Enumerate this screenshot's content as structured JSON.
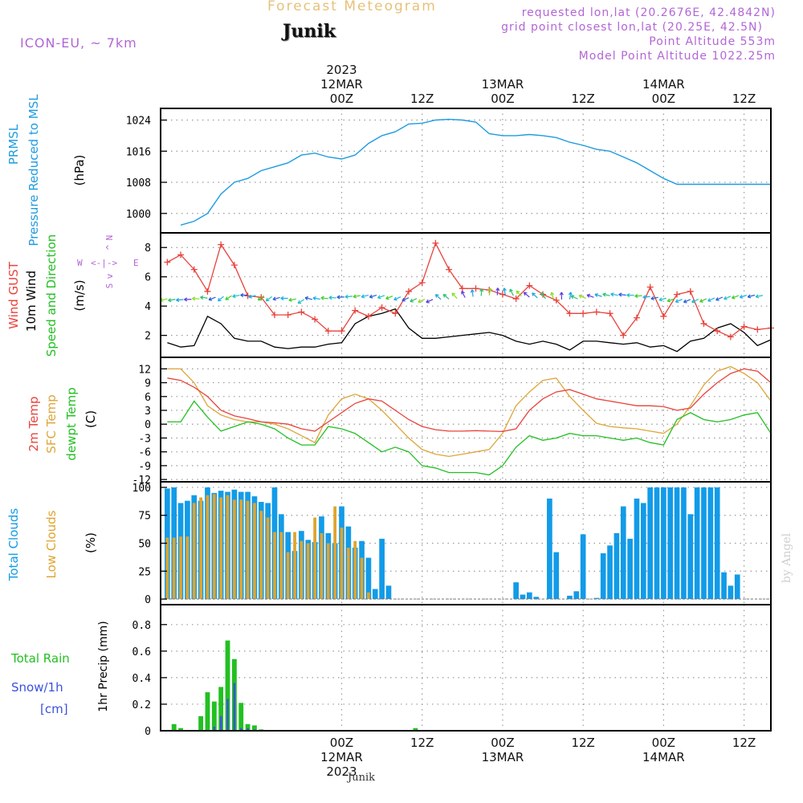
{
  "header": {
    "forecast_title": "Forecast Meteogram",
    "location": "Junik",
    "model": "ICON-EU, ~ 7km",
    "requested": "requested lon,lat (20.2676E, 42.4842N)",
    "grid_point": "grid point closest lon,lat (20.25E, 42.5N)",
    "point_altitude": "Point Altitude 553m",
    "model_altitude": "Model Point Altitude 1022.25m"
  },
  "time_axis": {
    "hours_start": -27,
    "hours_end": 64,
    "top_labels": [
      {
        "h": 0,
        "lines": [
          "2023",
          "12MAR",
          "00Z"
        ]
      },
      {
        "h": 12,
        "lines": [
          "12Z"
        ]
      },
      {
        "h": 24,
        "lines": [
          "13MAR",
          "00Z"
        ]
      },
      {
        "h": 36,
        "lines": [
          "12Z"
        ]
      },
      {
        "h": 48,
        "lines": [
          "14MAR",
          "00Z"
        ]
      },
      {
        "h": 60,
        "lines": [
          "12Z"
        ]
      }
    ],
    "bottom_labels": [
      {
        "h": 0,
        "lines": [
          "00Z",
          "12MAR",
          "2023"
        ]
      },
      {
        "h": 12,
        "lines": [
          "12Z"
        ]
      },
      {
        "h": 24,
        "lines": [
          "00Z",
          "13MAR"
        ]
      },
      {
        "h": 36,
        "lines": [
          "12Z"
        ]
      },
      {
        "h": 48,
        "lines": [
          "00Z",
          "14MAR"
        ]
      },
      {
        "h": 60,
        "lines": [
          "12Z"
        ]
      }
    ],
    "footer_location": "Junik"
  },
  "panel_labels": {
    "pressure": {
      "l1": "PRMSL",
      "l2": "Pressure Reduced to MSL",
      "unit": "(hPa)"
    },
    "wind": {
      "l1": "Wind GUST",
      "l2": "10m Wind",
      "l3": "Speed and Direction",
      "unit": "(m/s)",
      "compass": {
        "n": "N",
        "s": "S",
        "w": "W",
        "e": "E",
        "arrows_h": "<-|->",
        "arrow_up": "^",
        "arrow_down": "v"
      }
    },
    "temp": {
      "l1": "2m Temp",
      "l2": "SFC Temp",
      "l3": "dewpt Temp",
      "unit": "(C)"
    },
    "clouds": {
      "l1": "Total Clouds",
      "l2": "Low Clouds",
      "unit": "(%)"
    },
    "precip": {
      "l1": "Total  Rain",
      "l2": "Snow/1h",
      "l3": "[cm]",
      "unit": "1hr Precip (mm)"
    }
  },
  "watermark": "by Angel",
  "colors": {
    "pressure": "#1e9be0",
    "gust": "#e8433c",
    "wind10m": "#000000",
    "temp2m": "#e8433c",
    "sfc": "#dea53a",
    "dewpt": "#22c022",
    "total_clouds": "#129be8",
    "low_clouds": "#dfa42e",
    "rain": "#22c022",
    "snow": "#3a50e0",
    "labels_purple": "#b266d6",
    "title_gold": "#e6c27a"
  },
  "chart_data": [
    {
      "type": "line",
      "title": "PRMSL Pressure Reduced to MSL",
      "ylabel": "(hPa)",
      "ylim": [
        995,
        1027
      ],
      "yticks": [
        1000,
        1008,
        1016,
        1024
      ],
      "x_hours": [
        -24,
        -22,
        -20,
        -18,
        -16,
        -14,
        -12,
        -10,
        -8,
        -6,
        -4,
        -2,
        0,
        2,
        4,
        6,
        8,
        10,
        12,
        14,
        16,
        18,
        20,
        22,
        24,
        26,
        28,
        30,
        32,
        34,
        36,
        38,
        40,
        42,
        44,
        46,
        48,
        50,
        52,
        54,
        56,
        58,
        60,
        62,
        64
      ],
      "series": [
        {
          "name": "PRMSL",
          "values": [
            997,
            998,
            1000,
            1005,
            1008,
            1009,
            1011,
            1012,
            1013,
            1015,
            1015.5,
            1014.5,
            1014,
            1015,
            1018,
            1020,
            1021,
            1023,
            1023.2,
            1024,
            1024.2,
            1024,
            1023.5,
            1020.5,
            1020,
            1020,
            1020.3,
            1020,
            1019.5,
            1018.3,
            1017.5,
            1016.5,
            1016,
            1014.5,
            1013,
            1011,
            1009,
            1007.5,
            1007.5,
            1007.5,
            1007.5,
            1007.5,
            1007.5,
            1007.5,
            1007.5
          ]
        }
      ]
    },
    {
      "type": "line",
      "title": "Wind GUST / 10m Wind",
      "ylabel": "(m/s)",
      "ylim": [
        0.5,
        9
      ],
      "yticks": [
        2,
        4,
        6,
        8
      ],
      "x_hours": [
        -26,
        -24,
        -22,
        -20,
        -18,
        -16,
        -14,
        -12,
        -10,
        -8,
        -6,
        -4,
        -2,
        0,
        2,
        4,
        6,
        8,
        10,
        12,
        14,
        16,
        18,
        20,
        22,
        24,
        26,
        28,
        30,
        32,
        34,
        36,
        38,
        40,
        42,
        44,
        46,
        48,
        50,
        52,
        54,
        56,
        58,
        60,
        62,
        64
      ],
      "series": [
        {
          "name": "Wind GUST",
          "values": [
            7,
            7.5,
            6.5,
            5,
            8.2,
            6.8,
            4.7,
            4.6,
            3.4,
            3.4,
            3.6,
            3.1,
            2.3,
            2.3,
            3.7,
            3.3,
            3.9,
            3.5,
            5,
            5.6,
            8.3,
            6.5,
            5.2,
            5.2,
            5.1,
            4.8,
            4.5,
            5.4,
            4.8,
            4.4,
            3.5,
            3.5,
            3.6,
            3.5,
            2,
            3.2,
            5.3,
            3.3,
            4.8,
            5,
            2.8,
            2.3,
            1.9,
            2.6,
            2.4,
            2.5
          ]
        },
        {
          "name": "10m Wind",
          "values": [
            1.5,
            1.2,
            1.3,
            3.3,
            2.8,
            1.8,
            1.6,
            1.6,
            1.2,
            1.1,
            1.2,
            1.2,
            1.4,
            1.5,
            2.8,
            3.3,
            3.5,
            3.8,
            2.5,
            1.8,
            1.8,
            1.9,
            2,
            2.1,
            2.2,
            2,
            1.6,
            1.4,
            1.6,
            1.4,
            1.0,
            1.6,
            1.6,
            1.5,
            1.4,
            1.5,
            1.2,
            1.3,
            0.9,
            1.6,
            1.8,
            2.5,
            2.8,
            2.2,
            1.3,
            1.7
          ]
        }
      ]
    },
    {
      "type": "line",
      "title": "2m Temp / SFC Temp / dewpt Temp",
      "ylabel": "(C)",
      "ylim": [
        -12.5,
        14.5
      ],
      "yticks": [
        -12,
        -9,
        -6,
        -3,
        0,
        3,
        6,
        9,
        12
      ],
      "x_hours": [
        -26,
        -24,
        -22,
        -20,
        -18,
        -16,
        -14,
        -12,
        -10,
        -8,
        -6,
        -4,
        -2,
        0,
        2,
        4,
        6,
        8,
        10,
        12,
        14,
        16,
        18,
        20,
        22,
        24,
        26,
        28,
        30,
        32,
        34,
        36,
        38,
        40,
        42,
        44,
        46,
        48,
        50,
        52,
        54,
        56,
        58,
        60,
        62,
        64
      ],
      "series": [
        {
          "name": "2m Temp",
          "values": [
            10,
            9.5,
            8,
            6,
            3,
            1.8,
            1.2,
            0.5,
            0.3,
            0,
            -1,
            -1.5,
            0.5,
            2.5,
            4.5,
            5.5,
            5,
            3,
            1,
            -0.5,
            -1.2,
            -1.5,
            -1.5,
            -1.4,
            -1.5,
            -1.6,
            -1,
            3,
            5.5,
            7,
            7.5,
            6.5,
            5.5,
            5,
            4.5,
            4,
            4,
            3.8,
            3,
            3.5,
            6.5,
            9,
            11,
            12,
            11.5,
            9
          ]
        },
        {
          "name": "SFC Temp",
          "values": [
            12,
            12,
            9,
            4,
            2,
            1,
            0.5,
            0.5,
            0,
            -1,
            -2.5,
            -4,
            2,
            5.5,
            6.5,
            5.5,
            3,
            0,
            -3,
            -5.5,
            -6.5,
            -7,
            -6.5,
            -6,
            -5.5,
            -2,
            4,
            7,
            9.5,
            10,
            6,
            3,
            0.2,
            -0.5,
            -0.8,
            -1,
            -1.5,
            -2,
            0,
            4,
            8.5,
            11.5,
            12.5,
            11,
            9,
            5
          ]
        },
        {
          "name": "dewpt Temp",
          "values": [
            0.5,
            0.5,
            5,
            1.5,
            -1.5,
            -0.5,
            0.5,
            0,
            -1,
            -3,
            -4.5,
            -4.5,
            -0.5,
            -1,
            -2,
            -4,
            -6,
            -5,
            -6,
            -9,
            -9.5,
            -10.5,
            -10.5,
            -10.5,
            -11,
            -9,
            -5,
            -2.5,
            -3.5,
            -3,
            -2,
            -2.5,
            -2.5,
            -3,
            -3.5,
            -3,
            -4,
            -4.5,
            1,
            2.5,
            1,
            0.5,
            1,
            2,
            2.5,
            -2
          ]
        }
      ]
    },
    {
      "type": "bar",
      "title": "Total Clouds / Low Clouds",
      "ylabel": "(%)",
      "ylim": [
        -5,
        105
      ],
      "yticks": [
        0,
        25,
        50,
        75,
        100
      ],
      "x_hours": [
        -26,
        -25,
        -24,
        -23,
        -22,
        -21,
        -20,
        -19,
        -18,
        -17,
        -16,
        -15,
        -14,
        -13,
        -12,
        -11,
        -10,
        -9,
        -8,
        -7,
        -6,
        -5,
        -4,
        -3,
        -2,
        -1,
        0,
        1,
        2,
        3,
        4,
        5,
        6,
        7,
        8,
        9,
        10,
        11,
        12,
        13,
        14,
        15,
        16,
        17,
        18,
        19,
        20,
        21,
        22,
        23,
        24,
        25,
        26,
        27,
        28,
        29,
        30,
        31,
        32,
        33,
        34,
        35,
        36,
        37,
        38,
        39,
        40,
        41,
        42,
        43,
        44,
        45,
        46,
        47,
        48,
        49,
        50,
        51,
        52,
        53,
        54,
        55,
        56,
        57,
        58,
        59,
        60,
        61,
        62,
        63,
        64
      ],
      "series": [
        {
          "name": "Total Clouds",
          "values": [
            99,
            100,
            86,
            88,
            93,
            88,
            100,
            95,
            97,
            96,
            98,
            96,
            96,
            92,
            87,
            86,
            100,
            76,
            60,
            43,
            61,
            53,
            51,
            74,
            59,
            50,
            83,
            65,
            46,
            52,
            37,
            9,
            54,
            12,
            0,
            0,
            0,
            0,
            0,
            0,
            0,
            0,
            0,
            0,
            0,
            0,
            0,
            0,
            0,
            0,
            0,
            0,
            15,
            4,
            6,
            2,
            0,
            90,
            42,
            0,
            3,
            7,
            58,
            0,
            1,
            41,
            48,
            59,
            83,
            54,
            90,
            86,
            100,
            100,
            100,
            100,
            100,
            100,
            76,
            100,
            100,
            100,
            100,
            24,
            12,
            22,
            0,
            0,
            0,
            0,
            0
          ]
        },
        {
          "name": "Low Clouds",
          "values": [
            55,
            55,
            56,
            56,
            86,
            91,
            93,
            94,
            91,
            93,
            89,
            89,
            88,
            86,
            79,
            73,
            60,
            60,
            42,
            60,
            52,
            50,
            73,
            59,
            50,
            83,
            64,
            46,
            52,
            37,
            6,
            0,
            0,
            0,
            0,
            0,
            0,
            0,
            0,
            0,
            0,
            0,
            0,
            0,
            0,
            0,
            0,
            0,
            0,
            0,
            0,
            0,
            0,
            0,
            0,
            0,
            0,
            0,
            0,
            0,
            0,
            0,
            0,
            0,
            0,
            0,
            0,
            0,
            0,
            0,
            0,
            0,
            0,
            0,
            0,
            0,
            0,
            0,
            0,
            0,
            0,
            0,
            0,
            0,
            0,
            0,
            0,
            0,
            0,
            0,
            0
          ]
        }
      ]
    },
    {
      "type": "bar",
      "title": "1hr Precip (mm)",
      "ylabel": "1hr Precip (mm)",
      "ylim": [
        0,
        0.95
      ],
      "yticks": [
        0,
        0.2,
        0.4,
        0.6,
        0.8
      ],
      "x_hours": [
        -26,
        -25,
        -24,
        -23,
        -22,
        -21,
        -20,
        -19,
        -18,
        -17,
        -16,
        -15,
        -14,
        -13,
        -12,
        -11,
        -10,
        -9,
        -8,
        -7,
        -6,
        -5,
        -4,
        -3,
        -2,
        -1,
        0,
        1,
        2,
        3,
        4,
        5,
        6,
        7,
        8,
        9,
        10,
        11,
        12
      ],
      "series": [
        {
          "name": "Total Rain",
          "values": [
            0,
            0.05,
            0.02,
            0,
            0,
            0.11,
            0.29,
            0.22,
            0.33,
            0.68,
            0.54,
            0.21,
            0.05,
            0.04,
            0.01,
            0,
            0,
            0,
            0,
            0,
            0,
            0,
            0,
            0,
            0,
            0,
            0,
            0,
            0,
            0,
            0,
            0,
            0,
            0,
            0,
            0,
            0,
            0.02,
            0
          ]
        },
        {
          "name": "Snow/1h",
          "values": [
            0,
            0,
            0,
            0,
            0,
            0,
            0,
            0.03,
            0.11,
            0.24,
            0.36,
            0.02,
            0.02,
            0.01,
            0,
            0,
            0,
            0,
            0,
            0,
            0,
            0,
            0,
            0,
            0,
            0,
            0,
            0,
            0,
            0,
            0,
            0,
            0,
            0,
            0,
            0,
            0,
            0,
            0
          ]
        }
      ]
    }
  ]
}
